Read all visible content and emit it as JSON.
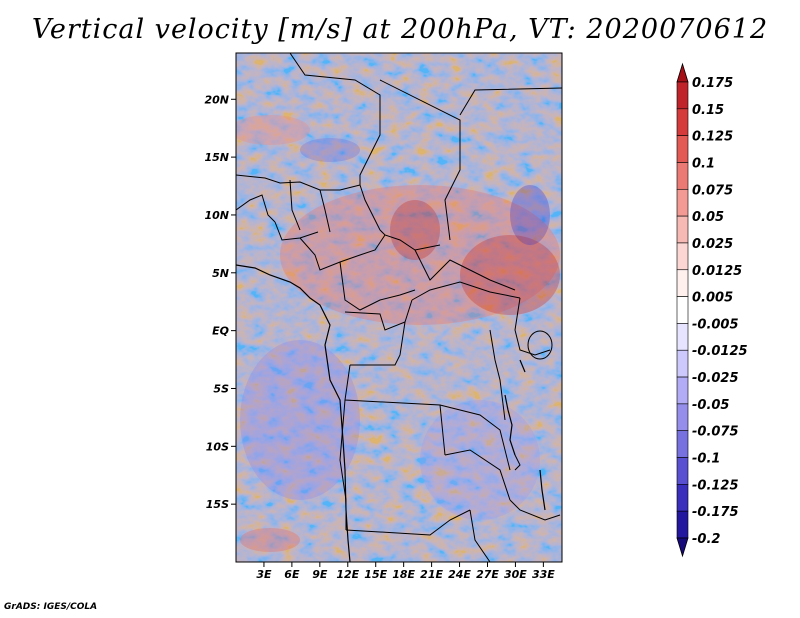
{
  "title": "Vertical velocity [m/s] at 200hPa, VT: 2020070612",
  "credit": "GrADS: IGES/COLA",
  "map": {
    "lat_range": [
      -20,
      24
    ],
    "lon_range": [
      0,
      35
    ],
    "lat_ticks": [
      {
        "value": 20,
        "label": "20N"
      },
      {
        "value": 15,
        "label": "15N"
      },
      {
        "value": 10,
        "label": "10N"
      },
      {
        "value": 5,
        "label": "5N"
      },
      {
        "value": 0,
        "label": "EQ"
      },
      {
        "value": -5,
        "label": "5S"
      },
      {
        "value": -10,
        "label": "10S"
      },
      {
        "value": -15,
        "label": "15S"
      }
    ],
    "lon_ticks": [
      {
        "value": 3,
        "label": "3E"
      },
      {
        "value": 6,
        "label": "6E"
      },
      {
        "value": 9,
        "label": "9E"
      },
      {
        "value": 12,
        "label": "12E"
      },
      {
        "value": 15,
        "label": "15E"
      },
      {
        "value": 18,
        "label": "18E"
      },
      {
        "value": 21,
        "label": "21E"
      },
      {
        "value": 24,
        "label": "24E"
      },
      {
        "value": 27,
        "label": "27E"
      },
      {
        "value": 30,
        "label": "30E"
      },
      {
        "value": 33,
        "label": "33E"
      }
    ]
  },
  "colorbar": {
    "labels": [
      "0.175",
      "0.15",
      "0.125",
      "0.1",
      "0.075",
      "0.05",
      "0.025",
      "0.0125",
      "0.005",
      "-0.005",
      "-0.0125",
      "-0.025",
      "-0.05",
      "-0.075",
      "-0.1",
      "-0.125",
      "-0.175",
      "-0.2"
    ],
    "colors": [
      "#a50f15",
      "#c0242a",
      "#d63b3b",
      "#e35a55",
      "#ec7a74",
      "#f29a93",
      "#f7b9b3",
      "#fbd6d2",
      "#fff0ee",
      "#ffffff",
      "#e6e4ff",
      "#cdc9fc",
      "#b1acf5",
      "#958feb",
      "#7770df",
      "#5850d0",
      "#3a2fbd",
      "#24179f",
      "#16097a"
    ]
  }
}
